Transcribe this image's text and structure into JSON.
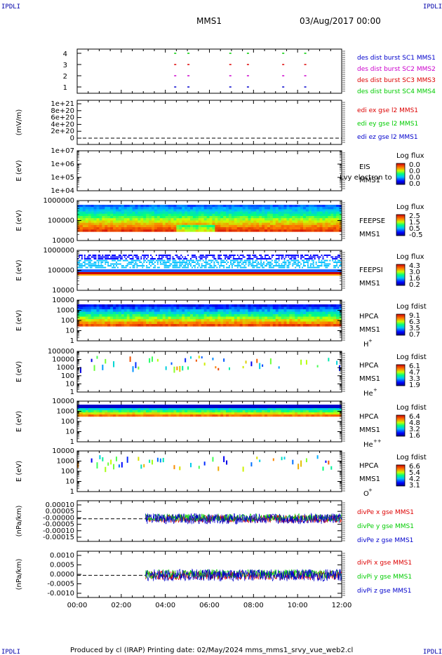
{
  "corner_labels": {
    "tl": "IPDLI",
    "tr": "IPDLI",
    "bl": "IPDLI",
    "br": "IPDLI"
  },
  "header": {
    "mission": "MMS1",
    "date": "03/Aug/2017 00:00"
  },
  "footer": "Produced by cl (IRAP)   Printing date: 02/May/2024   mms_mms1_srvy_vue_web2.cl",
  "x_ticks": [
    "00:00",
    "02:00",
    "04:00",
    "06:00",
    "08:00",
    "10:00",
    "12:00"
  ],
  "colors": {
    "red": "#dd0000",
    "green": "#00cc00",
    "blue": "#0000cc",
    "magenta": "#cc00cc"
  },
  "chart_data": [
    {
      "type": "scatter",
      "panel": "des_dist_burst",
      "ylim": [
        0.5,
        4.5
      ],
      "yticks": [
        "4",
        "3",
        "2",
        "1"
      ],
      "legend": [
        {
          "label": "des dist burst SC1 MMS1",
          "color": "#0000cc"
        },
        {
          "label": "des dist burst SC2 MMS2",
          "color": "#cc00cc"
        },
        {
          "label": "des dist burst SC3 MMS3",
          "color": "#dd0000"
        },
        {
          "label": "des dist burst SC4 MMS4",
          "color": "#00cc00"
        }
      ],
      "burst_times_h": [
        4.4,
        5.0,
        6.9,
        7.7,
        9.3,
        10.3
      ]
    },
    {
      "type": "line",
      "panel": "edi_e",
      "ylabel": "(mV/m)",
      "yticks": [
        "1e+21",
        "8e+20",
        "6e+20",
        "4e+20",
        "2e+20",
        "0"
      ],
      "legend": [
        {
          "label": "edi ex gse l2 MMS1",
          "color": "#dd0000"
        },
        {
          "label": "edi ey gse l2 MMS1",
          "color": "#00cc00"
        },
        {
          "label": "edi ez gse l2 MMS1",
          "color": "#0000cc"
        }
      ]
    },
    {
      "type": "heatmap",
      "panel": "eis",
      "ylabel": "E (eV)",
      "yticks": [
        "1e+07",
        "1e+06",
        "1e+05",
        "1e+04"
      ],
      "instrument": "EIS",
      "overlay_text": "Lvy electron to",
      "sc": "MMS1",
      "cb_title": "Log flux",
      "cb_ticks": [
        "0.0",
        "0.0",
        "0.0",
        "0.0"
      ]
    },
    {
      "type": "heatmap",
      "panel": "feepse",
      "ylabel": "E (eV)",
      "yticks": [
        "1000000",
        "100000",
        "10000"
      ],
      "instrument": "FEEPSE",
      "sc": "MMS1",
      "cb_title": "Log flux",
      "cb_ticks": [
        "2.5",
        "1.5",
        "0.5",
        "-0.5"
      ]
    },
    {
      "type": "heatmap",
      "panel": "feepsi",
      "ylabel": "E (eV)",
      "yticks": [
        "1000000",
        "100000",
        "10000"
      ],
      "instrument": "FEEPSI",
      "sc": "MMS1",
      "cb_title": "Log flux",
      "cb_ticks": [
        "4.3",
        "3.0",
        "1.6",
        "0.2"
      ]
    },
    {
      "type": "heatmap",
      "panel": "hpca_h",
      "ylabel": "E (eV)",
      "yticks": [
        "10000",
        "1000",
        "100",
        "10",
        "1"
      ],
      "instrument": "HPCA",
      "sc": "MMS1",
      "species": "H",
      "species_sup": "+",
      "cb_title": "Log fdist",
      "cb_ticks": [
        "9.1",
        "6.3",
        "3.5",
        "0.7"
      ]
    },
    {
      "type": "heatmap",
      "panel": "hpca_he",
      "ylabel": "E (eV)",
      "yticks": [
        "100000",
        "10000",
        "1000",
        "100",
        "10",
        "1"
      ],
      "instrument": "HPCA",
      "sc": "MMS1",
      "species": "He",
      "species_sup": "+",
      "cb_title": "Log fdist",
      "cb_ticks": [
        "6.1",
        "4.7",
        "3.3",
        "1.9"
      ]
    },
    {
      "type": "heatmap",
      "panel": "hpca_hepp",
      "ylabel": "E (eV)",
      "yticks": [
        "10000",
        "1000",
        "100",
        "10",
        "1"
      ],
      "instrument": "HPCA",
      "sc": "MMS1",
      "species": "He",
      "species_sup": "++",
      "cb_title": "Log fdist",
      "cb_ticks": [
        "6.4",
        "4.8",
        "3.2",
        "1.6"
      ]
    },
    {
      "type": "heatmap",
      "panel": "hpca_o",
      "ylabel": "E (eV)",
      "yticks": [
        "10000",
        "1000",
        "100",
        "10",
        "1"
      ],
      "instrument": "HPCA",
      "sc": "MMS1",
      "species": "O",
      "species_sup": "+",
      "cb_title": "Log fdist",
      "cb_ticks": [
        "6.6",
        "5.4",
        "4.2",
        "3.1"
      ]
    },
    {
      "type": "line",
      "panel": "divpe",
      "ylabel": "(nPa/km)",
      "yticks": [
        "0.00010",
        "0.00005",
        "-0.00000",
        "-0.00005",
        "-0.00010",
        "-0.00015"
      ],
      "ylim": [
        -0.00015,
        0.00012
      ],
      "legend": [
        {
          "label": "divPe x gse MMS1",
          "color": "#dd0000"
        },
        {
          "label": "divPe y gse MMS1",
          "color": "#00cc00"
        },
        {
          "label": "divPe z gse MMS1",
          "color": "#0000cc"
        }
      ]
    },
    {
      "type": "line",
      "panel": "divpi",
      "ylabel": "(nPa/km)",
      "yticks": [
        "0.0010",
        "0.0005",
        "0.0000",
        "-0.0005",
        "-0.0010"
      ],
      "ylim": [
        -0.0012,
        0.0013
      ],
      "legend": [
        {
          "label": "divPi x gse MMS1",
          "color": "#dd0000"
        },
        {
          "label": "divPi y gse MMS1",
          "color": "#00cc00"
        },
        {
          "label": "divPi z gse MMS1",
          "color": "#0000cc"
        }
      ]
    }
  ]
}
